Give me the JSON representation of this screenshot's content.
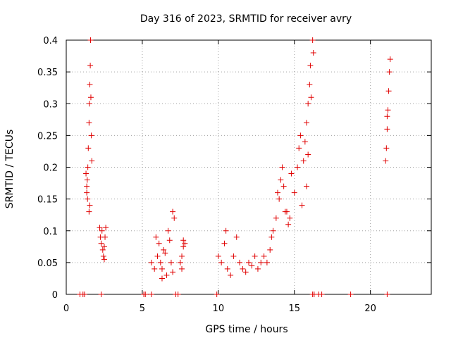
{
  "chart_data": {
    "type": "scatter",
    "title": "Day 316 of 2023, SRMTID for receiver avry",
    "xlabel": "GPS time / hours",
    "ylabel": "SRMTID / TECUs",
    "xlim": [
      0,
      24
    ],
    "ylim": [
      0,
      0.4
    ],
    "grid": true,
    "marker": "plus",
    "color": "#e00000",
    "x_ticks": [
      0,
      5,
      10,
      15,
      20
    ],
    "x_tick_labels": [
      "0",
      "5",
      "10",
      "15",
      "20"
    ],
    "y_ticks": [
      0,
      0.05,
      0.1,
      0.15,
      0.2,
      0.25,
      0.3,
      0.35,
      0.4
    ],
    "y_tick_labels": [
      "0",
      "0.05",
      "0.1",
      "0.15",
      "0.2",
      "0.25",
      "0.3",
      "0.35",
      "0.4"
    ],
    "series": [
      {
        "name": "SRMTID",
        "points": [
          [
            1.3,
            0.19
          ],
          [
            1.35,
            0.17
          ],
          [
            1.4,
            0.15
          ],
          [
            1.42,
            0.2
          ],
          [
            1.45,
            0.23
          ],
          [
            1.5,
            0.27
          ],
          [
            1.52,
            0.3
          ],
          [
            1.55,
            0.33
          ],
          [
            1.58,
            0.36
          ],
          [
            1.6,
            0.4
          ],
          [
            1.62,
            0.31
          ],
          [
            1.65,
            0.25
          ],
          [
            1.68,
            0.21
          ],
          [
            1.55,
            0.14
          ],
          [
            1.5,
            0.13
          ],
          [
            1.35,
            0.16
          ],
          [
            1.38,
            0.18
          ],
          [
            2.2,
            0.105
          ],
          [
            2.25,
            0.09
          ],
          [
            2.3,
            0.08
          ],
          [
            2.35,
            0.1
          ],
          [
            2.4,
            0.07
          ],
          [
            2.45,
            0.06
          ],
          [
            2.5,
            0.055
          ],
          [
            2.55,
            0.09
          ],
          [
            2.6,
            0.105
          ],
          [
            2.5,
            0.075
          ],
          [
            5.6,
            0.05
          ],
          [
            5.8,
            0.04
          ],
          [
            5.9,
            0.09
          ],
          [
            6.0,
            0.06
          ],
          [
            6.1,
            0.08
          ],
          [
            6.2,
            0.05
          ],
          [
            6.3,
            0.04
          ],
          [
            6.4,
            0.07
          ],
          [
            6.5,
            0.065
          ],
          [
            6.6,
            0.03
          ],
          [
            6.7,
            0.1
          ],
          [
            6.8,
            0.085
          ],
          [
            6.9,
            0.05
          ],
          [
            7.0,
            0.13
          ],
          [
            7.1,
            0.12
          ],
          [
            7.0,
            0.035
          ],
          [
            6.3,
            0.025
          ],
          [
            7.5,
            0.05
          ],
          [
            7.6,
            0.06
          ],
          [
            7.7,
            0.075
          ],
          [
            7.8,
            0.08
          ],
          [
            7.6,
            0.04
          ],
          [
            7.7,
            0.085
          ],
          [
            10.0,
            0.06
          ],
          [
            10.2,
            0.05
          ],
          [
            10.4,
            0.08
          ],
          [
            10.5,
            0.1
          ],
          [
            10.6,
            0.04
          ],
          [
            10.8,
            0.03
          ],
          [
            11.0,
            0.06
          ],
          [
            11.2,
            0.09
          ],
          [
            11.4,
            0.05
          ],
          [
            11.6,
            0.04
          ],
          [
            11.8,
            0.035
          ],
          [
            12.0,
            0.05
          ],
          [
            12.2,
            0.045
          ],
          [
            12.4,
            0.06
          ],
          [
            12.6,
            0.04
          ],
          [
            12.8,
            0.05
          ],
          [
            13.0,
            0.06
          ],
          [
            13.2,
            0.05
          ],
          [
            13.4,
            0.07
          ],
          [
            13.5,
            0.09
          ],
          [
            13.6,
            0.1
          ],
          [
            13.8,
            0.12
          ],
          [
            14.0,
            0.15
          ],
          [
            14.1,
            0.18
          ],
          [
            14.2,
            0.2
          ],
          [
            14.3,
            0.17
          ],
          [
            14.4,
            0.13
          ],
          [
            14.6,
            0.11
          ],
          [
            14.8,
            0.19
          ],
          [
            15.0,
            0.16
          ],
          [
            15.2,
            0.2
          ],
          [
            15.3,
            0.23
          ],
          [
            15.4,
            0.25
          ],
          [
            15.5,
            0.14
          ],
          [
            15.6,
            0.21
          ],
          [
            15.7,
            0.24
          ],
          [
            15.8,
            0.27
          ],
          [
            15.9,
            0.3
          ],
          [
            16.0,
            0.33
          ],
          [
            16.05,
            0.36
          ],
          [
            16.1,
            0.31
          ],
          [
            16.2,
            0.4
          ],
          [
            16.25,
            0.38
          ],
          [
            15.8,
            0.17
          ],
          [
            15.9,
            0.22
          ],
          [
            14.5,
            0.13
          ],
          [
            14.7,
            0.12
          ],
          [
            13.9,
            0.16
          ],
          [
            21.0,
            0.21
          ],
          [
            21.05,
            0.23
          ],
          [
            21.1,
            0.26
          ],
          [
            21.15,
            0.29
          ],
          [
            21.2,
            0.32
          ],
          [
            21.25,
            0.35
          ],
          [
            21.3,
            0.37
          ],
          [
            21.1,
            0.28
          ]
        ]
      }
    ],
    "baseline_points": [
      0.9,
      1.1,
      1.2,
      2.3,
      5.1,
      5.2,
      5.6,
      7.2,
      7.35,
      9.9,
      16.2,
      16.3,
      16.6,
      16.8,
      18.7,
      21.1
    ]
  }
}
